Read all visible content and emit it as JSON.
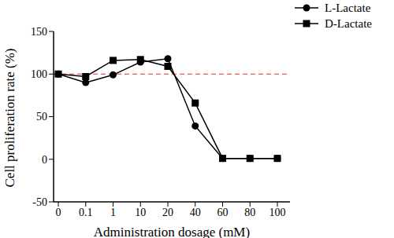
{
  "chart_data": {
    "type": "line",
    "x_label": "Administration dosage (mM)",
    "y_label": "Cell proliferation rate (%)",
    "categories": [
      "0",
      "0.1",
      "1",
      "10",
      "20",
      "40",
      "60",
      "80",
      "100"
    ],
    "series": [
      {
        "name": "L-Lactate",
        "color": "#000000",
        "marker": "circle",
        "line_style": "solid",
        "values": [
          100,
          90,
          99,
          114,
          118,
          39,
          1,
          1,
          1
        ]
      },
      {
        "name": "D-Lactate",
        "color": "#000000",
        "marker": "square",
        "line_style": "solid",
        "values": [
          100,
          97,
          116,
          117,
          109,
          66,
          1,
          1,
          1
        ]
      }
    ],
    "ylim": [
      -50,
      150
    ],
    "yticks": [
      -50,
      0,
      50,
      100,
      150
    ],
    "grid": false,
    "legend": "top-right",
    "reference_lines": [
      {
        "value": 100,
        "color": "#e03030",
        "line_style": "dashed"
      }
    ]
  }
}
